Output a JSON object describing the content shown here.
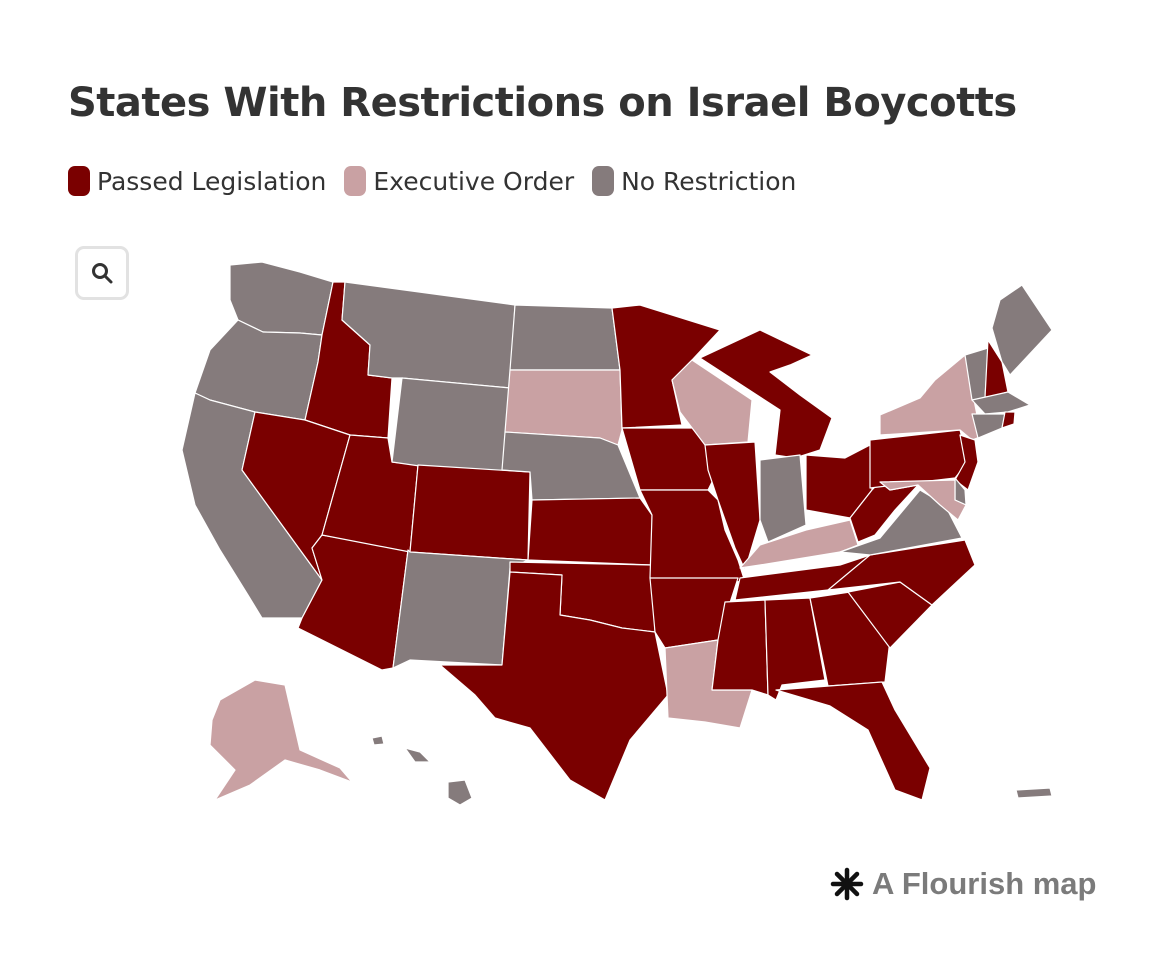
{
  "title": "States With Restrictions on Israel Boycotts",
  "legend": [
    {
      "label": "Passed Legislation",
      "color": "#7a0000"
    },
    {
      "label": "Executive Order",
      "color": "#c9a1a3"
    },
    {
      "label": "No Restriction",
      "color": "#857b7c"
    }
  ],
  "zoom_icon": "search-icon",
  "credit": {
    "icon": "flourish-asterisk-icon",
    "text": "A Flourish map"
  },
  "status": {
    "WA": "No Restriction",
    "OR": "No Restriction",
    "CA": "No Restriction",
    "ID": "Passed Legislation",
    "NV": "Passed Legislation",
    "AZ": "Passed Legislation",
    "UT": "Passed Legislation",
    "MT": "No Restriction",
    "WY": "No Restriction",
    "CO": "Passed Legislation",
    "NM": "No Restriction",
    "ND": "No Restriction",
    "SD": "Executive Order",
    "NE": "No Restriction",
    "KS": "Passed Legislation",
    "OK": "Passed Legislation",
    "TX": "Passed Legislation",
    "MN": "Passed Legislation",
    "IA": "Passed Legislation",
    "MO": "Passed Legislation",
    "AR": "Passed Legislation",
    "LA": "Executive Order",
    "WI": "Executive Order",
    "IL": "Passed Legislation",
    "MI": "Passed Legislation",
    "IN": "No Restriction",
    "OH": "Passed Legislation",
    "KY": "Executive Order",
    "TN": "Passed Legislation",
    "MS": "Passed Legislation",
    "AL": "Passed Legislation",
    "GA": "Passed Legislation",
    "FL": "Passed Legislation",
    "SC": "Passed Legislation",
    "NC": "Passed Legislation",
    "VA": "No Restriction",
    "WV": "Passed Legislation",
    "PA": "Passed Legislation",
    "NY": "Executive Order",
    "NJ": "Passed Legislation",
    "DE": "No Restriction",
    "MD": "Executive Order",
    "VT": "No Restriction",
    "NH": "Passed Legislation",
    "ME": "No Restriction",
    "MA": "No Restriction",
    "CT": "No Restriction",
    "RI": "Passed Legislation",
    "AK": "Executive Order",
    "HI": "No Restriction",
    "PR": "No Restriction"
  }
}
